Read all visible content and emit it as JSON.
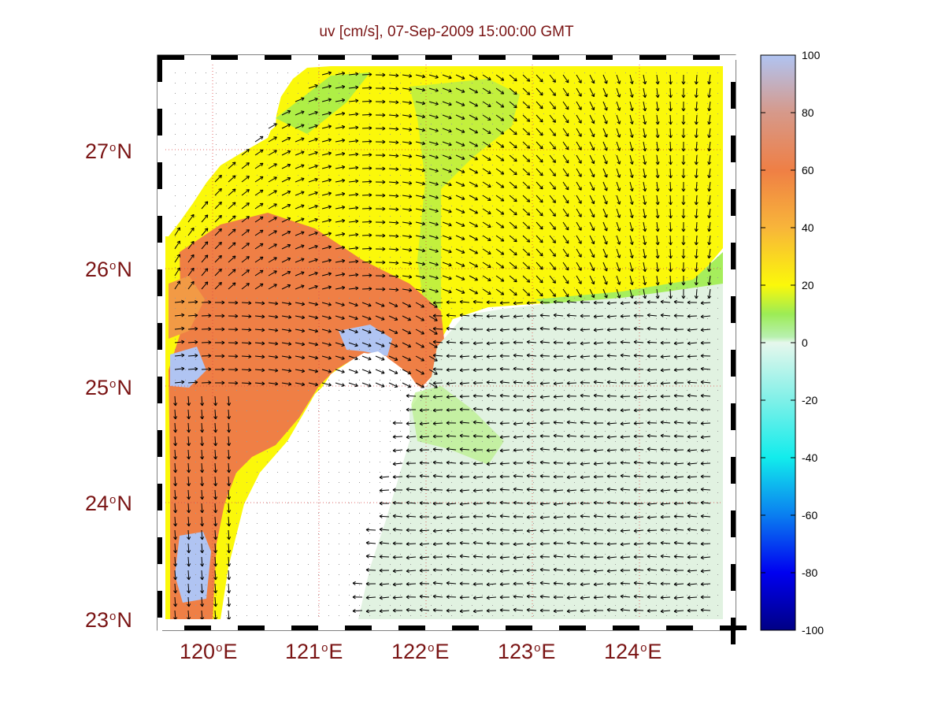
{
  "title": "uv [cm/s], 07-Sep-2009 15:00:00 GMT",
  "map": {
    "lon_range": [
      119.5,
      124.9
    ],
    "lat_range": [
      22.9,
      27.7
    ],
    "lat_labels": [
      {
        "deg": "27",
        "hemi": "N"
      },
      {
        "deg": "26",
        "hemi": "N"
      },
      {
        "deg": "25",
        "hemi": "N"
      },
      {
        "deg": "24",
        "hemi": "N"
      },
      {
        "deg": "23",
        "hemi": "N"
      }
    ],
    "lon_labels": [
      {
        "deg": "120",
        "hemi": "E"
      },
      {
        "deg": "121",
        "hemi": "E"
      },
      {
        "deg": "122",
        "hemi": "E"
      },
      {
        "deg": "123",
        "hemi": "E"
      },
      {
        "deg": "124",
        "hemi": "E"
      }
    ],
    "grid_lines": "dotted",
    "degree_symbol": "o"
  },
  "colorbar": {
    "ticks": [
      "100",
      "80",
      "60",
      "40",
      "20",
      "0",
      "-20",
      "-40",
      "-60",
      "-80",
      "-100"
    ],
    "range": [
      -100,
      100
    ],
    "colors": {
      "high": "#b0c4f2",
      "orange": "#ef7f45",
      "yellow": "#fbf80a",
      "green": "#9cec55",
      "zero": "#e6f7ec",
      "cyan": "#12ecec",
      "low": "#000085"
    }
  },
  "colors": {
    "label_text": "#7a1414",
    "land": "#ffffff",
    "arrows": "#000000"
  }
}
